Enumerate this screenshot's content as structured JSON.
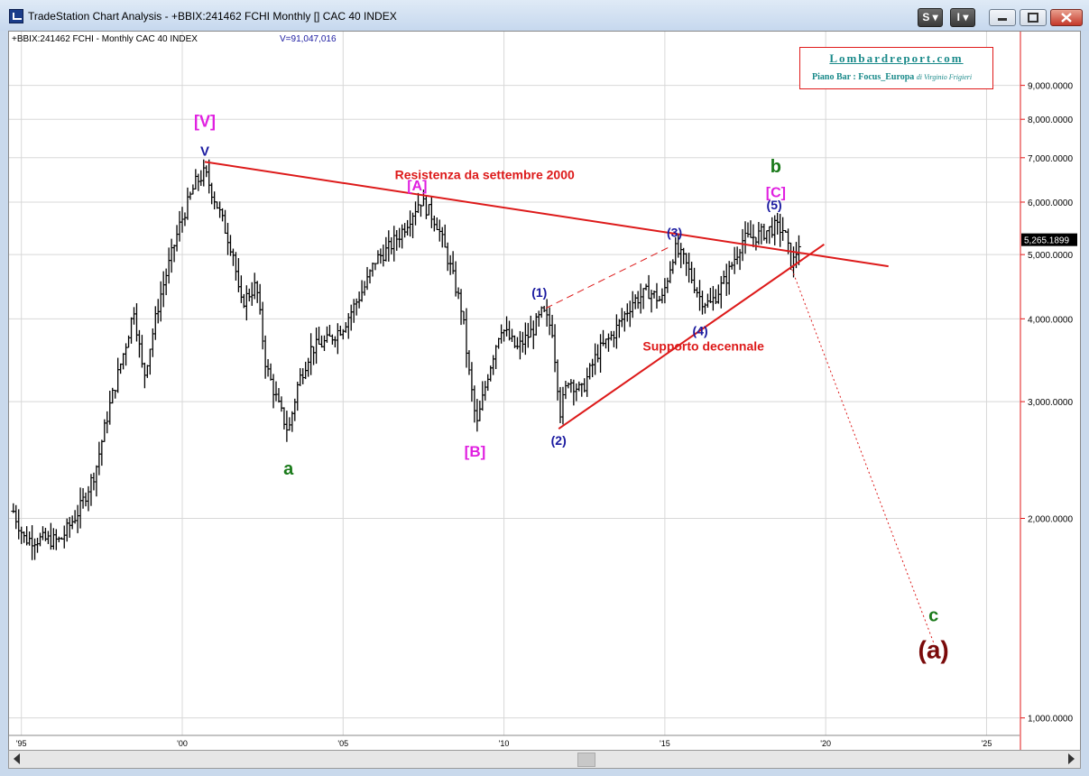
{
  "window": {
    "title": "TradeStation Chart Analysis - +BBIX:241462 FCHI Monthly [] CAC 40 INDEX",
    "btn_s": "S",
    "btn_i": "I"
  },
  "header": {
    "symbol_info": "+BBIX:241462 FCHI - Monthly  CAC 40 INDEX",
    "volume": "V=91,047,016"
  },
  "logo": {
    "title": "Lombardreport.com",
    "subtitle_bold": "Piano Bar : Focus_Europa",
    "subtitle_italic": "di Virginio Frigieri"
  },
  "colors": {
    "bars": "#000000",
    "trendline": "#dd1a1a",
    "wave_blue": "#1a1aa0",
    "wave_magenta": "#e020e0",
    "wave_green": "#1a7a1a",
    "wave_darkred": "#7a0a0a",
    "price_axis": "#e01a1a"
  },
  "chart_data": {
    "type": "bar",
    "scale": "log",
    "ylim": [
      950,
      10000
    ],
    "x_domain": [
      1994.7,
      2025.8
    ],
    "y_ticks": [
      1000,
      2000,
      3000,
      4000,
      5000,
      6000,
      7000,
      8000,
      9000
    ],
    "y_tick_labels": [
      "1,000.0000",
      "2,000.0000",
      "3,000.0000",
      "4,000.0000",
      "5,000.0000",
      "6,000.0000",
      "7,000.0000",
      "8,000.0000",
      "9,000.0000"
    ],
    "x_ticks": [
      1995,
      2000,
      2005,
      2010,
      2015,
      2020,
      2025
    ],
    "x_tick_labels": [
      "'95",
      "'00",
      "'05",
      "'10",
      "'15",
      "'20",
      "'25"
    ],
    "last_price": 5265.1899,
    "last_price_label": "5,265.1899",
    "anchors": [
      {
        "t": 1994.75,
        "v": 2050
      },
      {
        "t": 1995.1,
        "v": 1860
      },
      {
        "t": 1995.6,
        "v": 1860
      },
      {
        "t": 1996.2,
        "v": 1850
      },
      {
        "t": 1996.8,
        "v": 2060
      },
      {
        "t": 1997.3,
        "v": 2360
      },
      {
        "t": 1997.7,
        "v": 2900
      },
      {
        "t": 1998.3,
        "v": 3750
      },
      {
        "t": 1998.5,
        "v": 4150
      },
      {
        "t": 1998.8,
        "v": 3250
      },
      {
        "t": 1999.3,
        "v": 4300
      },
      {
        "t": 1999.9,
        "v": 5500
      },
      {
        "t": 2000.4,
        "v": 6400
      },
      {
        "t": 2000.7,
        "v": 6650
      },
      {
        "t": 2001.1,
        "v": 5900
      },
      {
        "t": 2001.6,
        "v": 5000
      },
      {
        "t": 2001.8,
        "v": 4200
      },
      {
        "t": 2002.3,
        "v": 4500
      },
      {
        "t": 2002.6,
        "v": 3400
      },
      {
        "t": 2003.0,
        "v": 2950
      },
      {
        "t": 2003.3,
        "v": 2700
      },
      {
        "t": 2003.6,
        "v": 3200
      },
      {
        "t": 2004.0,
        "v": 3600
      },
      {
        "t": 2004.5,
        "v": 3700
      },
      {
        "t": 2005.0,
        "v": 3900
      },
      {
        "t": 2005.7,
        "v": 4500
      },
      {
        "t": 2006.0,
        "v": 4900
      },
      {
        "t": 2006.4,
        "v": 5100
      },
      {
        "t": 2006.8,
        "v": 5400
      },
      {
        "t": 2007.4,
        "v": 6050
      },
      {
        "t": 2007.9,
        "v": 5600
      },
      {
        "t": 2008.3,
        "v": 4850
      },
      {
        "t": 2008.7,
        "v": 4100
      },
      {
        "t": 2008.9,
        "v": 3350
      },
      {
        "t": 2009.15,
        "v": 2750
      },
      {
        "t": 2009.5,
        "v": 3300
      },
      {
        "t": 2009.9,
        "v": 3900
      },
      {
        "t": 2010.4,
        "v": 3600
      },
      {
        "t": 2010.9,
        "v": 3850
      },
      {
        "t": 2011.2,
        "v": 4100
      },
      {
        "t": 2011.5,
        "v": 3850
      },
      {
        "t": 2011.75,
        "v": 2900
      },
      {
        "t": 2012.0,
        "v": 3250
      },
      {
        "t": 2012.4,
        "v": 3100
      },
      {
        "t": 2012.9,
        "v": 3550
      },
      {
        "t": 2013.4,
        "v": 3800
      },
      {
        "t": 2014.0,
        "v": 4250
      },
      {
        "t": 2014.5,
        "v": 4400
      },
      {
        "t": 2014.9,
        "v": 4250
      },
      {
        "t": 2015.3,
        "v": 5100
      },
      {
        "t": 2015.6,
        "v": 4900
      },
      {
        "t": 2016.1,
        "v": 4300
      },
      {
        "t": 2016.4,
        "v": 4200
      },
      {
        "t": 2016.9,
        "v": 4600
      },
      {
        "t": 2017.4,
        "v": 5250
      },
      {
        "t": 2017.9,
        "v": 5350
      },
      {
        "t": 2018.4,
        "v": 5500
      },
      {
        "t": 2018.7,
        "v": 5450
      },
      {
        "t": 2018.95,
        "v": 4800
      },
      {
        "t": 2019.2,
        "v": 5265
      }
    ],
    "resistance_line": {
      "from": {
        "t": 2000.7,
        "v": 6900
      },
      "to": {
        "t": 2021.95,
        "v": 4800
      }
    },
    "support_line": {
      "from": {
        "t": 2011.7,
        "v": 2730
      },
      "to": {
        "t": 2019.95,
        "v": 5180
      }
    },
    "dashed_line": {
      "from": {
        "t": 2011.3,
        "v": 4150
      },
      "to": {
        "t": 2015.2,
        "v": 5150
      }
    },
    "projection_line": {
      "from": {
        "t": 2018.95,
        "v": 4750
      },
      "to": {
        "t": 2023.35,
        "v": 1300
      }
    },
    "wave_labels": [
      {
        "text": "[V]",
        "t": 2000.7,
        "v": 7800,
        "color": "magenta",
        "size": 18
      },
      {
        "text": "V",
        "t": 2000.7,
        "v": 7050,
        "color": "blue",
        "size": 15
      },
      {
        "text": "[A]",
        "t": 2007.3,
        "v": 6250,
        "color": "magenta",
        "size": 16
      },
      {
        "text": "a",
        "t": 2003.3,
        "v": 2330,
        "color": "green",
        "size": 20
      },
      {
        "text": "[B]",
        "t": 2009.1,
        "v": 2480,
        "color": "magenta",
        "size": 17
      },
      {
        "text": "(1)",
        "t": 2011.1,
        "v": 4320,
        "color": "blue",
        "size": 14
      },
      {
        "text": "(2)",
        "t": 2011.7,
        "v": 2580,
        "color": "blue",
        "size": 14
      },
      {
        "text": "(3)",
        "t": 2015.3,
        "v": 5320,
        "color": "blue",
        "size": 14
      },
      {
        "text": "(4)",
        "t": 2016.1,
        "v": 3780,
        "color": "blue",
        "size": 14
      },
      {
        "text": "(5)",
        "t": 2018.4,
        "v": 5850,
        "color": "blue",
        "size": 14
      },
      {
        "text": "b",
        "t": 2018.45,
        "v": 6650,
        "color": "green",
        "size": 20
      },
      {
        "text": "[C]",
        "t": 2018.45,
        "v": 6100,
        "color": "magenta",
        "size": 16
      },
      {
        "text": "c",
        "t": 2023.35,
        "v": 1400,
        "color": "green",
        "size": 20
      },
      {
        "text": "(a)",
        "t": 2023.35,
        "v": 1230,
        "color": "darkred",
        "size": 28
      }
    ],
    "annotations": [
      {
        "text": "Resistenza da settembre 2000",
        "t": 2009.4,
        "v": 6500,
        "color": "red"
      },
      {
        "text": "Supporto decennale",
        "t": 2016.2,
        "v": 3580,
        "color": "red"
      }
    ]
  }
}
